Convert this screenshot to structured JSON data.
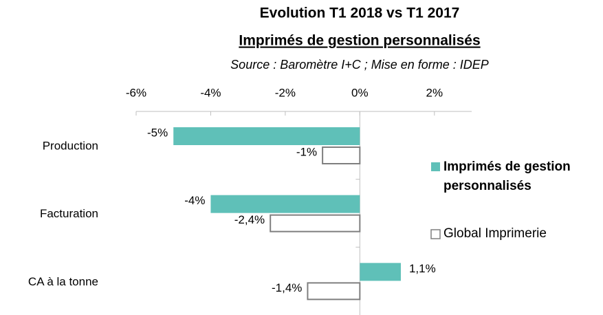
{
  "chart_data": {
    "type": "barh",
    "title": "Evolution T1 2018 vs T1 2017",
    "subtitle": "Imprimés de gestion personnalisés",
    "note": "Source : Baromètre I+C ; Mise en forme : IDEP",
    "categories": [
      "Production",
      "Facturation",
      "CA à la tonne"
    ],
    "series": [
      {
        "name": "Imprimés de gestion personnalisés",
        "color": "#5fc0b8",
        "outline": false,
        "values": [
          -5,
          -4,
          1.1
        ],
        "value_labels": [
          "-5%",
          "-4%",
          "1,1%"
        ]
      },
      {
        "name": "Global Imprimerie",
        "color": "#7f7f7f",
        "outline": true,
        "values": [
          -1,
          -2.4,
          -1.4
        ],
        "value_labels": [
          "-1%",
          "-2,4%",
          "-1,4%"
        ]
      }
    ],
    "xlim": [
      -6,
      3
    ],
    "xticks": [
      {
        "value": -6,
        "label": "-6%"
      },
      {
        "value": -4,
        "label": "-4%"
      },
      {
        "value": -2,
        "label": "-2%"
      },
      {
        "value": 0,
        "label": "0%"
      },
      {
        "value": 2,
        "label": "2%"
      }
    ],
    "grid": false,
    "legend": "right"
  }
}
